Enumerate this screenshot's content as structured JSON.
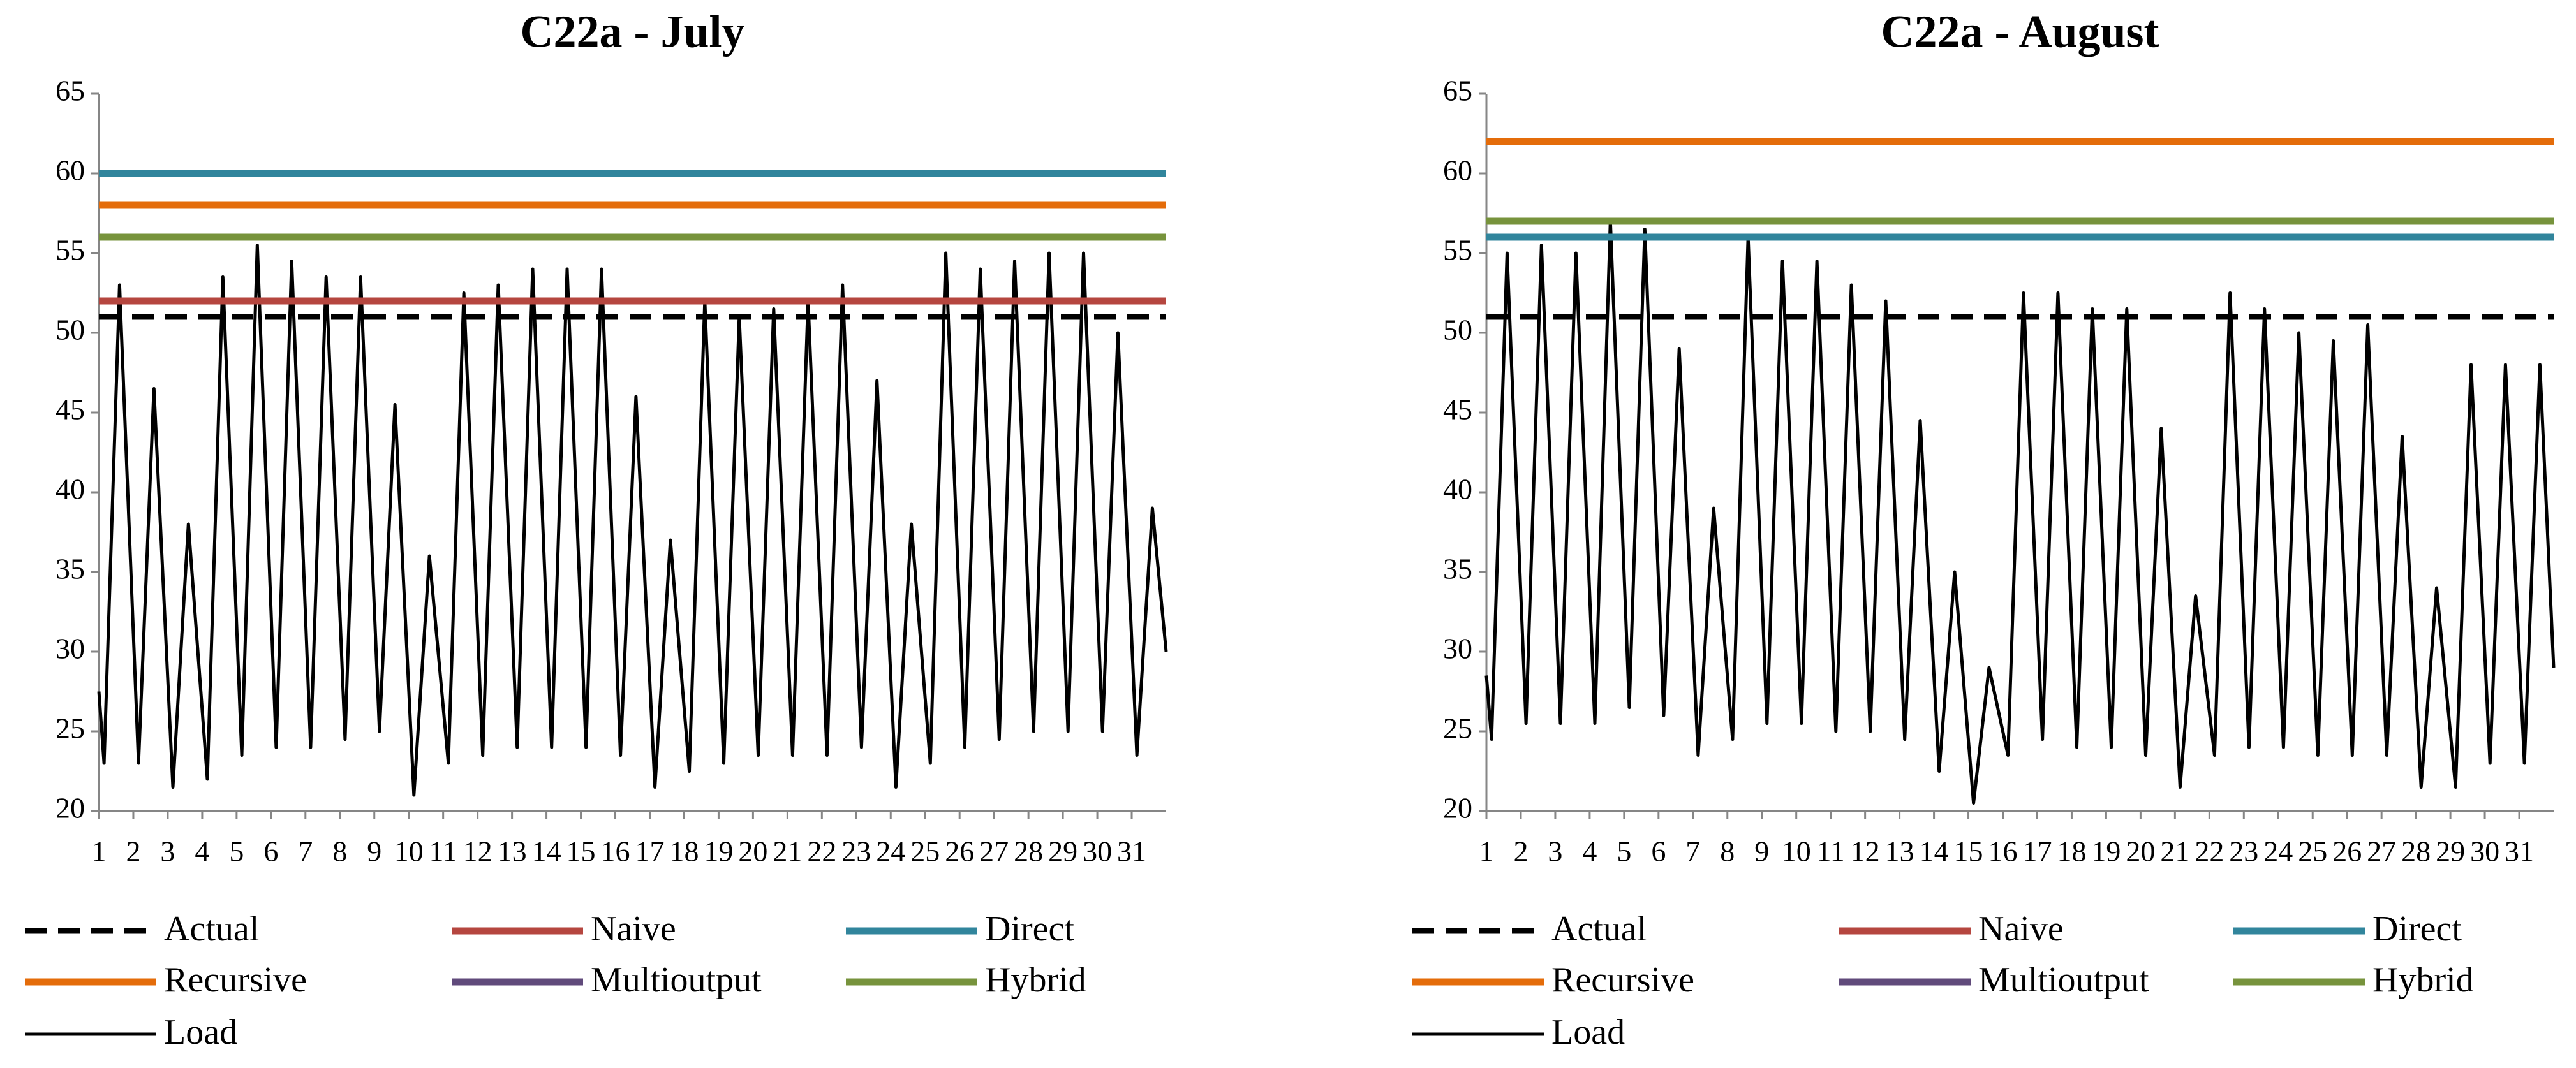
{
  "chart_data": [
    {
      "type": "line",
      "title": "C22a - July",
      "xlim": [
        1,
        32
      ],
      "xticks": [
        1,
        2,
        3,
        4,
        5,
        6,
        7,
        8,
        9,
        10,
        11,
        12,
        13,
        14,
        15,
        16,
        17,
        18,
        19,
        20,
        21,
        22,
        23,
        24,
        25,
        26,
        27,
        28,
        29,
        30,
        31
      ],
      "ylim": [
        20,
        65
      ],
      "yticks": [
        20,
        25,
        30,
        35,
        40,
        45,
        50,
        55,
        60,
        65
      ],
      "series": [
        {
          "name": "Actual",
          "color": "#000000",
          "dash": true,
          "value": 51
        },
        {
          "name": "Naive",
          "color": "#b5463f",
          "value": 52
        },
        {
          "name": "Direct",
          "color": "#31859c",
          "value": 60
        },
        {
          "name": "Recursive",
          "color": "#e46c0a",
          "value": 58
        },
        {
          "name": "Multioutput",
          "color": "#604a7b"
        },
        {
          "name": "Hybrid",
          "color": "#77933c",
          "value": 56
        },
        {
          "name": "Load",
          "color": "#000000",
          "x": [
            1,
            1.15,
            1.6,
            2.15,
            2.6,
            3.15,
            3.6,
            4.15,
            4.6,
            5.15,
            5.6,
            6.15,
            6.6,
            7.15,
            7.6,
            8.15,
            8.6,
            9.15,
            9.6,
            10.15,
            10.6,
            11.15,
            11.6,
            12.15,
            12.6,
            13.15,
            13.6,
            14.15,
            14.6,
            15.15,
            15.6,
            16.15,
            16.6,
            17.15,
            17.6,
            18.15,
            18.6,
            19.15,
            19.6,
            20.15,
            20.6,
            21.15,
            21.6,
            22.15,
            22.6,
            23.15,
            23.6,
            24.15,
            24.6,
            25.15,
            25.6,
            26.15,
            26.6,
            27.15,
            27.6,
            28.15,
            28.6,
            29.15,
            29.6,
            30.15,
            30.6,
            31.15,
            31.6,
            32
          ],
          "values": [
            27.5,
            23,
            53,
            23,
            46.5,
            21.5,
            38,
            22,
            53.5,
            23.5,
            55.5,
            24,
            54.5,
            24,
            53.5,
            24.5,
            53.5,
            25,
            45.5,
            21,
            36,
            23,
            52.5,
            23.5,
            53,
            24,
            54,
            24,
            54,
            24,
            54,
            23.5,
            46,
            21.5,
            37,
            22.5,
            52,
            23,
            51,
            23.5,
            51.5,
            23.5,
            52,
            23.5,
            53,
            24,
            47,
            21.5,
            38,
            23,
            55,
            24,
            54,
            24.5,
            54.5,
            25,
            55,
            25,
            55,
            25,
            50,
            23.5,
            39,
            30
          ]
        }
      ]
    },
    {
      "type": "line",
      "title": "C22a - August",
      "xlim": [
        1,
        32
      ],
      "xticks": [
        1,
        2,
        3,
        4,
        5,
        6,
        7,
        8,
        9,
        10,
        11,
        12,
        13,
        14,
        15,
        16,
        17,
        18,
        19,
        20,
        21,
        22,
        23,
        24,
        25,
        26,
        27,
        28,
        29,
        30,
        31
      ],
      "ylim": [
        20,
        65
      ],
      "yticks": [
        20,
        25,
        30,
        35,
        40,
        45,
        50,
        55,
        60,
        65
      ],
      "series": [
        {
          "name": "Actual",
          "color": "#000000",
          "dash": true,
          "value": 51
        },
        {
          "name": "Naive",
          "color": "#b5463f"
        },
        {
          "name": "Direct",
          "color": "#31859c",
          "value": 56
        },
        {
          "name": "Recursive",
          "color": "#e46c0a",
          "value": 62
        },
        {
          "name": "Multioutput",
          "color": "#604a7b"
        },
        {
          "name": "Hybrid",
          "color": "#77933c",
          "value": 57
        },
        {
          "name": "Load",
          "color": "#000000",
          "x": [
            1,
            1.15,
            1.6,
            2.15,
            2.6,
            3.15,
            3.6,
            4.15,
            4.6,
            5.15,
            5.6,
            6.15,
            6.6,
            7.15,
            7.6,
            8.15,
            8.6,
            9.15,
            9.6,
            10.15,
            10.6,
            11.15,
            11.6,
            12.15,
            12.6,
            13.15,
            13.6,
            14.15,
            14.6,
            15.15,
            15.6,
            16.15,
            16.6,
            17.15,
            17.6,
            18.15,
            18.6,
            19.15,
            19.6,
            20.15,
            20.6,
            21.15,
            21.6,
            22.15,
            22.6,
            23.15,
            23.6,
            24.15,
            24.6,
            25.15,
            25.6,
            26.15,
            26.6,
            27.15,
            27.6,
            28.15,
            28.6,
            29.15,
            29.6,
            30.15,
            30.6,
            31.15,
            31.6,
            32
          ],
          "values": [
            28.5,
            24.5,
            55,
            25.5,
            55.5,
            25.5,
            55,
            25.5,
            57,
            26.5,
            56.5,
            26,
            49,
            23.5,
            39,
            24.5,
            56,
            25.5,
            54.5,
            25.5,
            54.5,
            25,
            53,
            25,
            52,
            24.5,
            44.5,
            22.5,
            35,
            20.5,
            29,
            23.5,
            52.5,
            24.5,
            52.5,
            24,
            51.5,
            24,
            51.5,
            23.5,
            44,
            21.5,
            33.5,
            23.5,
            52.5,
            24,
            51.5,
            24,
            50,
            23.5,
            49.5,
            23.5,
            50.5,
            23.5,
            43.5,
            21.5,
            34,
            21.5,
            48,
            23,
            48,
            23,
            48,
            29
          ]
        }
      ]
    }
  ]
}
